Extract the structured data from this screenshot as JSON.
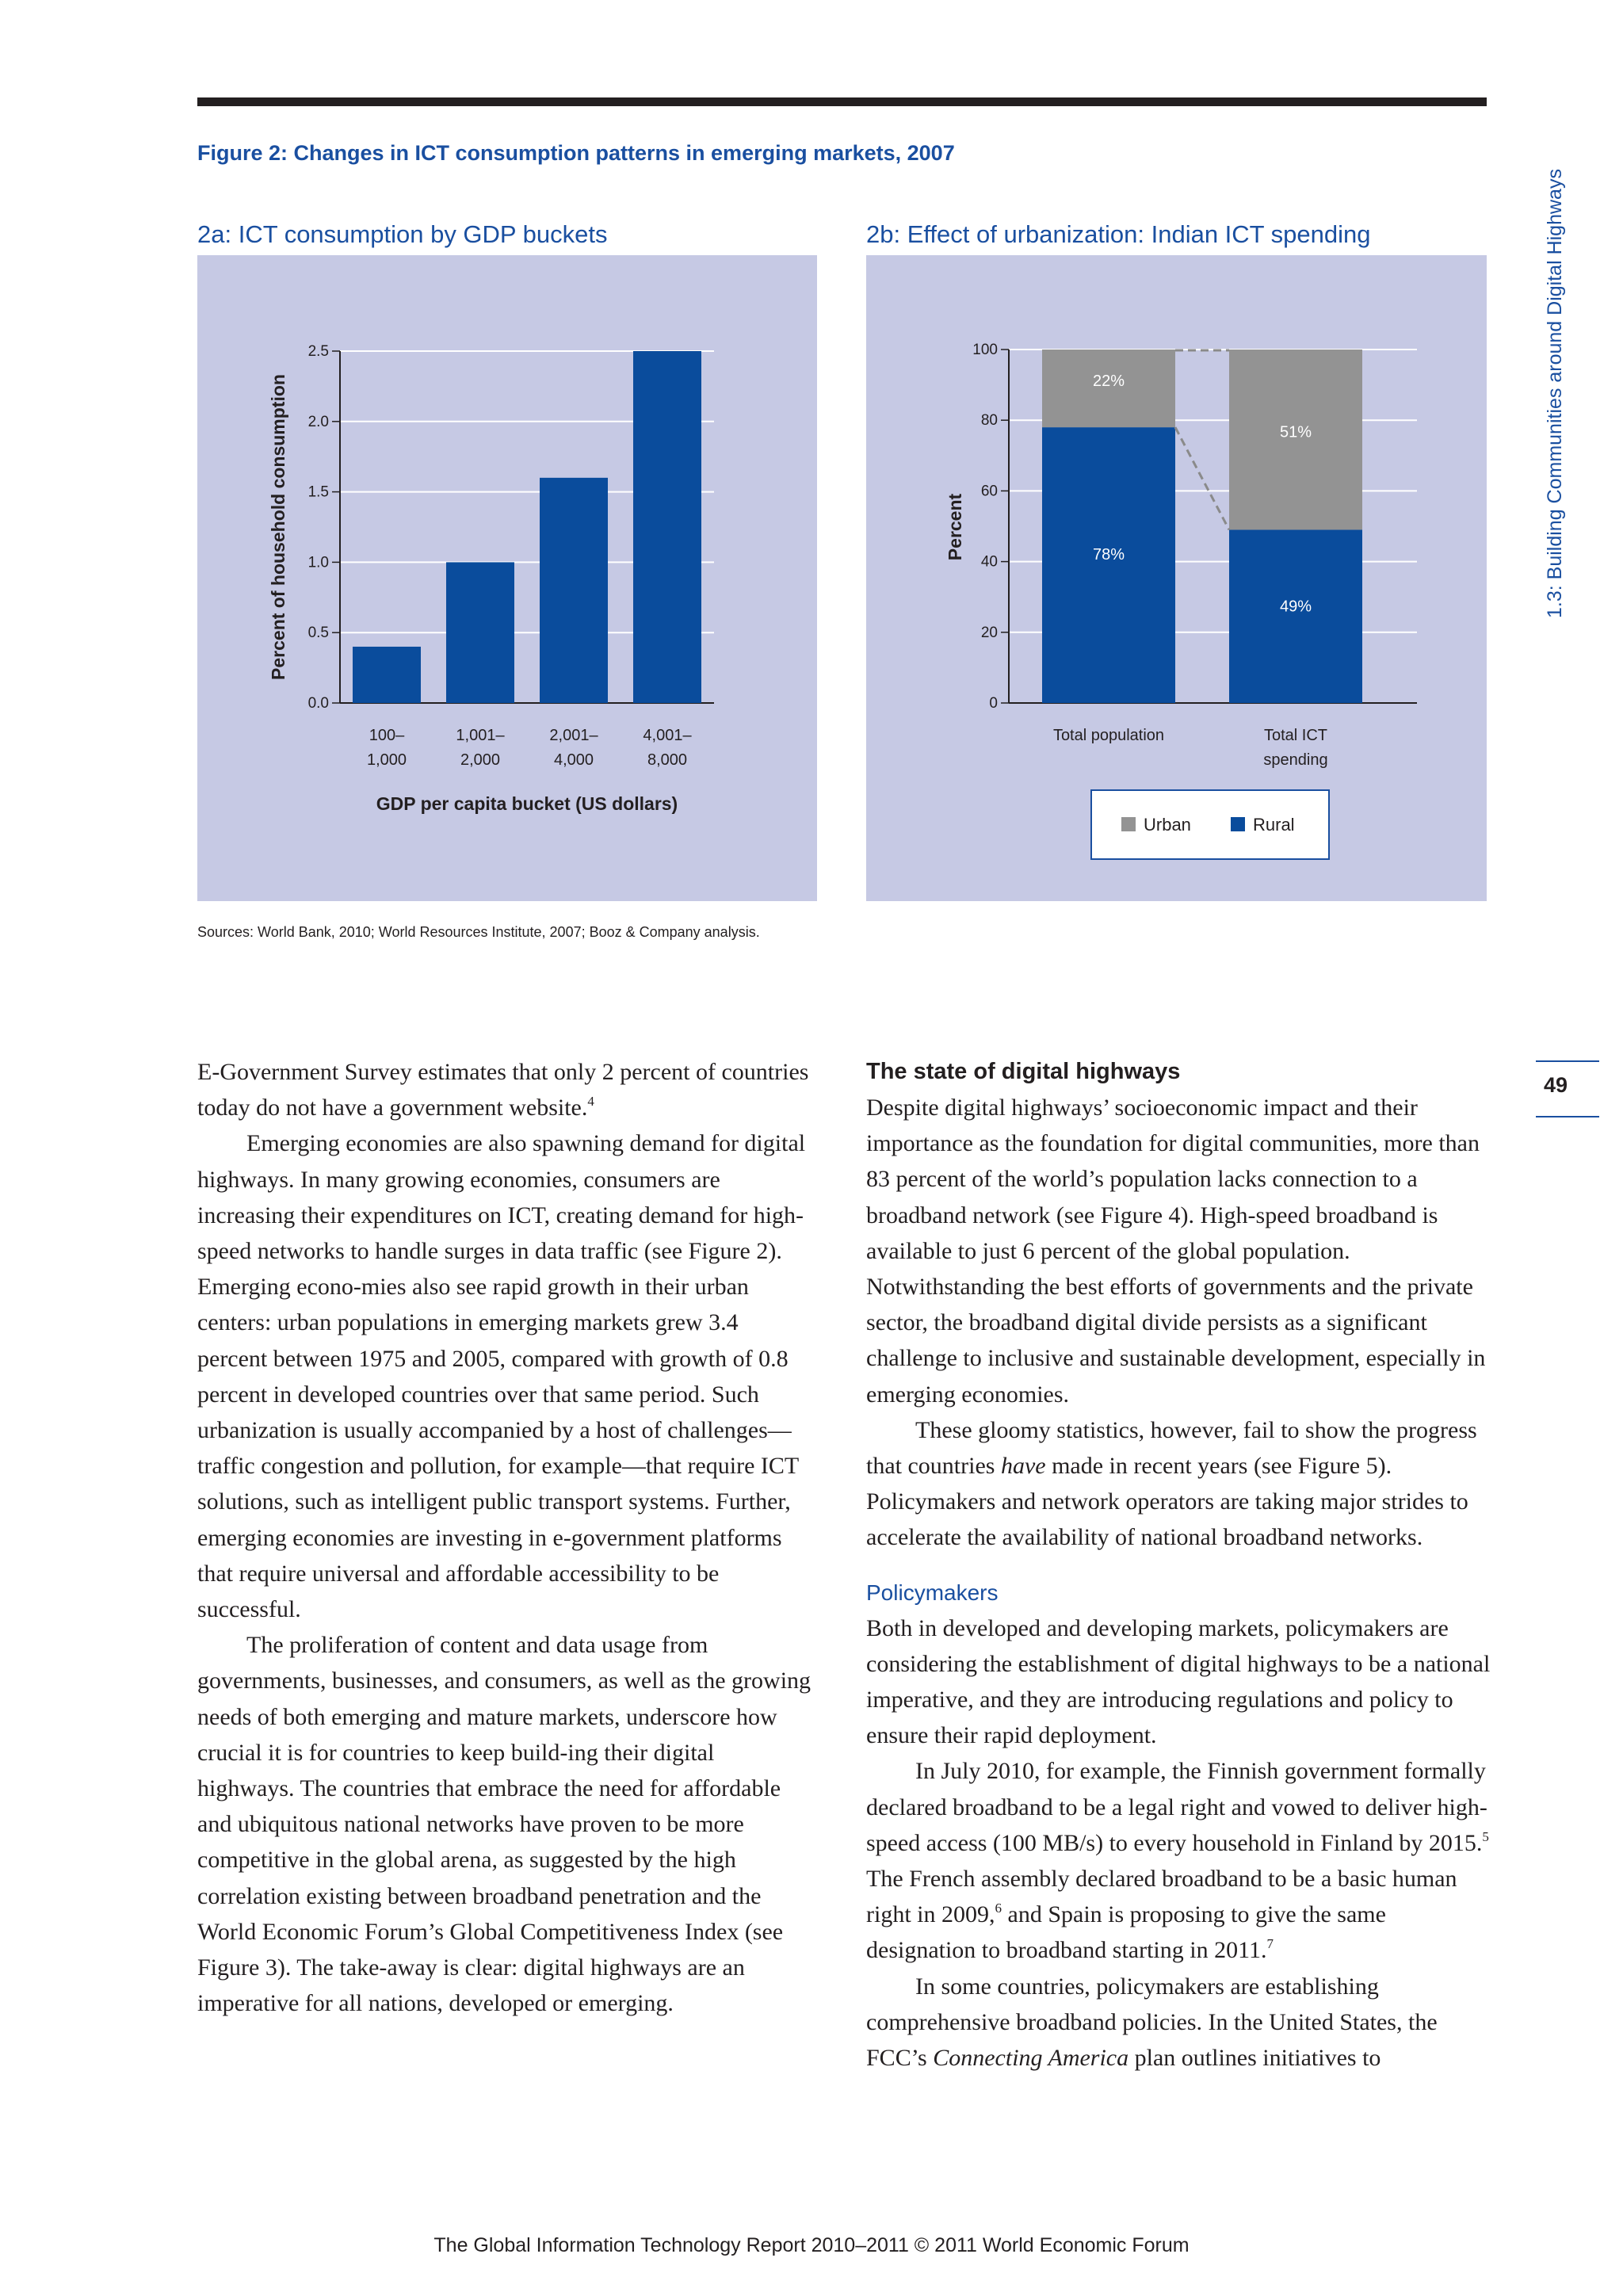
{
  "sidebar": {
    "section": "1.3: Building Communities around Digital Highways",
    "page_number": "49"
  },
  "figure": {
    "title": "Figure 2: Changes in ICT consumption patterns in emerging markets, 2007",
    "sources": "Sources: World Bank, 2010; World Resources Institute, 2007; Booz & Company analysis."
  },
  "chart_data": [
    {
      "type": "bar",
      "title": "2a: ICT consumption by GDP buckets",
      "xlabel": "GDP per capita bucket (US dollars)",
      "ylabel": "Percent of household consumption",
      "categories": [
        [
          "100–",
          "1,000"
        ],
        [
          "1,001–",
          "2,000"
        ],
        [
          "2,001–",
          "4,000"
        ],
        [
          "4,001–",
          "8,000"
        ]
      ],
      "values": [
        0.4,
        1.0,
        1.6,
        2.5
      ],
      "ylim": [
        0,
        2.5
      ],
      "yticks": [
        "0.0",
        "0.5",
        "1.0",
        "1.5",
        "2.0",
        "2.5"
      ],
      "grid": true,
      "color": "#0a4c9c"
    },
    {
      "type": "bar",
      "stacked": true,
      "title": "2b: Effect of urbanization: Indian ICT spending",
      "ylabel": "Percent",
      "categories": [
        [
          "Total population"
        ],
        [
          "Total ICT",
          "spending"
        ]
      ],
      "series": [
        {
          "name": "Rural",
          "values": [
            78,
            49
          ],
          "labels": [
            "78%",
            "49%"
          ],
          "color": "#0a4c9c"
        },
        {
          "name": "Urban",
          "values": [
            22,
            51
          ],
          "labels": [
            "22%",
            "51%"
          ],
          "color": "#939393"
        }
      ],
      "ylim": [
        0,
        100
      ],
      "yticks": [
        "0",
        "20",
        "40",
        "60",
        "80",
        "100"
      ],
      "grid": true,
      "legend": [
        "Urban",
        "Rural"
      ],
      "legend_placement": "bottom-center"
    }
  ],
  "body": {
    "left": [
      {
        "indent": false,
        "html": "E-Government Survey estimates that only 2 percent of countries today do not have a government website.<sup>4</sup>"
      },
      {
        "indent": true,
        "html": "Emerging economies are also spawning demand for digital highways. In many growing economies, consumers are increasing their expenditures on ICT, creating demand for high-speed networks to handle surges in data traffic (see Figure 2). Emerging econo-mies also see rapid growth in their urban centers: urban populations in emerging markets grew 3.4 percent between 1975 and 2005, compared with growth of 0.8 percent in developed countries over that same period. Such urbanization is usually accompanied by a host of challenges—traffic congestion and pollution, for example—that require ICT solutions, such as intelligent public transport systems. Further, emerging economies are investing in e-government platforms that require universal and affordable accessibility to be successful."
      },
      {
        "indent": true,
        "html": "The proliferation of content and data usage from governments, businesses, and consumers, as well as the growing needs of both emerging and mature markets, underscore how crucial it is for countries to keep build-ing their digital highways. The countries that embrace the need for affordable and ubiquitous national networks have proven to be more competitive in the global arena, as suggested by the high correlation existing between broadband penetration and the World Economic Forum’s Global Competitiveness Index (see Figure 3). The take-away is clear: digital highways are an imperative for all nations, developed or emerging."
      }
    ],
    "right_heading": "The state of digital highways",
    "right_intro": [
      {
        "indent": false,
        "html": "Despite digital highways’ socioeconomic impact and their importance as the foundation for digital communities, more than 83 percent of the world’s population lacks connection to a broadband network (see Figure 4). High-speed broadband is available to just 6 percent of the global population. Notwithstanding the best efforts of governments and the private sector, the broadband digital divide persists as a significant challenge to inclusive and sustainable development, especially in emerging economies."
      },
      {
        "indent": true,
        "html": "These gloomy statistics, however, fail to show the progress that countries <i>have</i> made in recent years (see Figure 5). Policymakers and network operators are taking major strides to accelerate the availability of national broadband networks."
      }
    ],
    "right_subheading": "Policymakers",
    "right_policy": [
      {
        "indent": false,
        "html": "Both in developed and developing markets, policymakers are considering the establishment of digital highways to be a national imperative, and they are introducing regulations and policy to ensure their rapid deployment."
      },
      {
        "indent": true,
        "html": "In July 2010, for example, the Finnish government formally declared broadband to be a legal right and vowed to deliver high-speed access (100 MB/s) to every household in Finland by 2015.<sup>5</sup> The French assembly declared broadband to be a basic human right in 2009,<sup>6</sup> and Spain is proposing to give the same designation to broadband starting in 2011.<sup>7</sup>"
      },
      {
        "indent": true,
        "html": "In some countries, policymakers are establishing comprehensive broadband policies. In the United States, the FCC’s <i>Connecting America</i> plan outlines initiatives to"
      }
    ]
  },
  "footer": "The Global Information Technology Report 2010–2011 © 2011 World Economic Forum"
}
